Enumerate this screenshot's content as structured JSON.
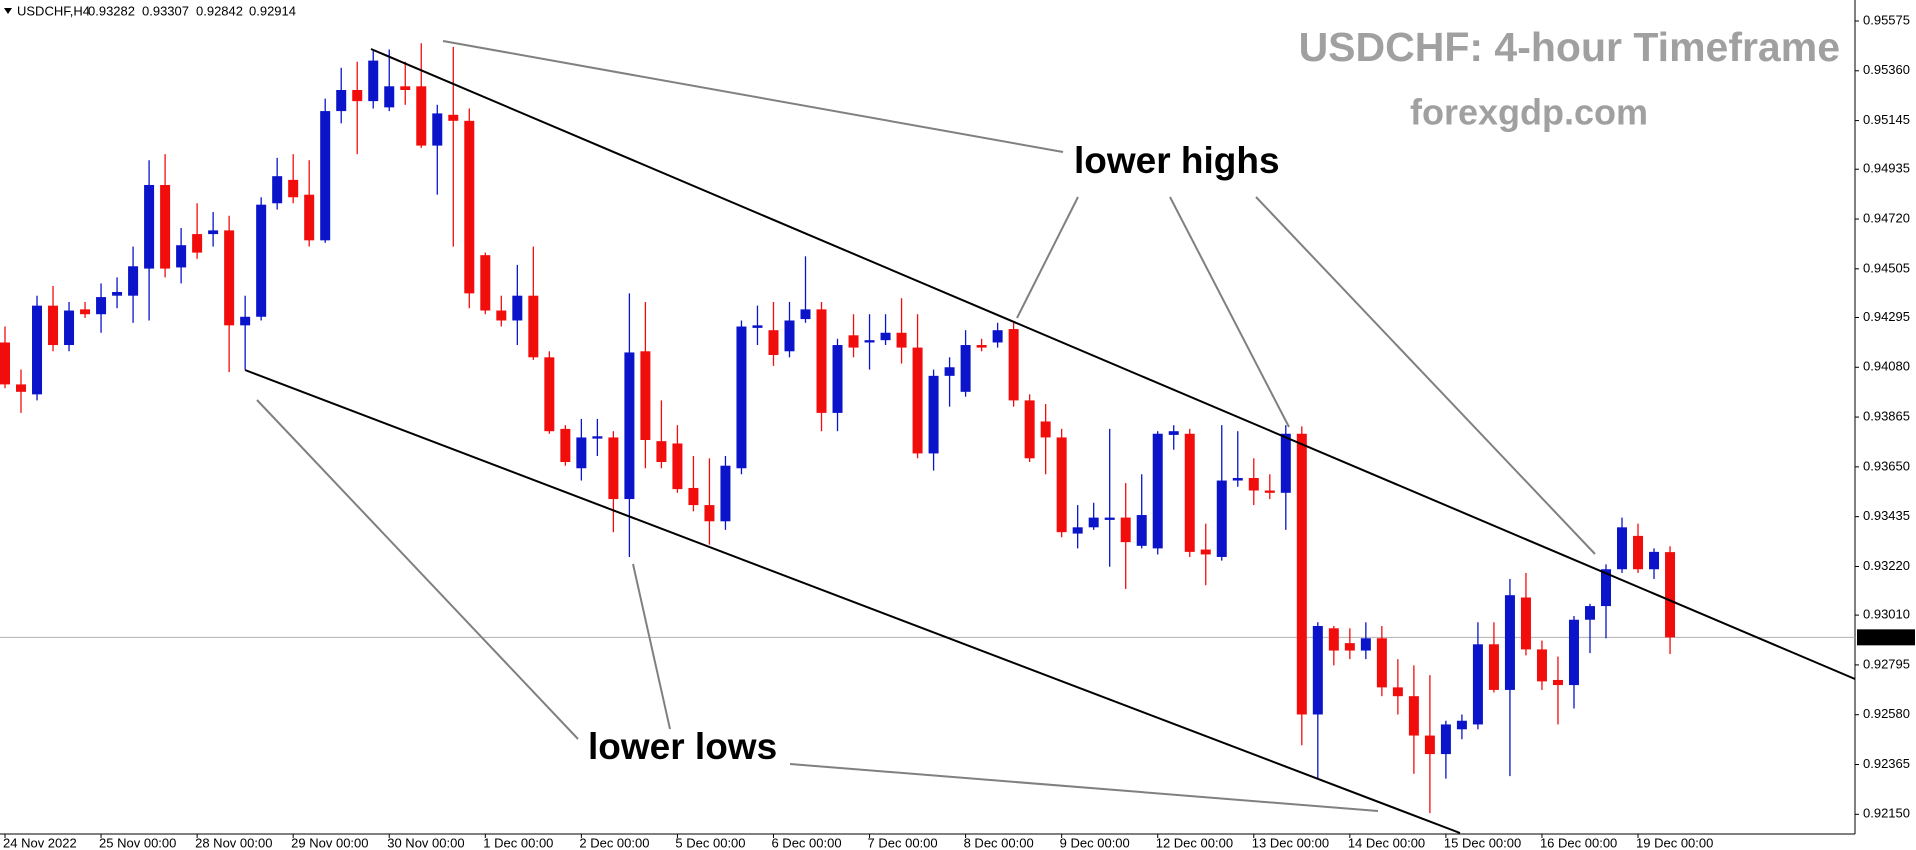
{
  "chart_data": {
    "type": "candlestick",
    "symbol": "USDCHF,H4",
    "title": "USDCHF: 4-hour Timeframe",
    "subtitle": "forexgdp.com",
    "annotations": [
      "lower highs",
      "lower lows"
    ],
    "up_color": "#0b14c9",
    "down_color": "#f20d0d",
    "ylim": [
      0.92065,
      0.95644
    ],
    "yticks": [
      0.95575,
      {
        "value": 0.9536,
        "label": "0.95360"
      },
      0.95145,
      0.94935,
      {
        "value": 0.9472,
        "label": "0.94720"
      },
      0.94505,
      0.94295,
      {
        "value": 0.9408,
        "label": "0.94080"
      },
      0.93865,
      {
        "value": 0.9365,
        "label": "0.93650"
      },
      0.93435,
      {
        "value": 0.9322,
        "label": "0.93220"
      },
      {
        "value": 0.9301,
        "label": "0.93010"
      },
      0.92795,
      {
        "value": 0.9258,
        "label": "0.92580"
      },
      0.92365,
      {
        "value": 0.9215,
        "label": "0.92150"
      }
    ],
    "categories": [
      "24 Nov 2022",
      null,
      null,
      null,
      null,
      null,
      "25 Nov 00:00",
      null,
      null,
      null,
      null,
      null,
      "28 Nov 00:00",
      null,
      null,
      null,
      null,
      null,
      "29 Nov 00:00",
      null,
      null,
      null,
      null,
      null,
      "30 Nov 00:00",
      null,
      null,
      null,
      null,
      null,
      "1 Dec 00:00",
      null,
      null,
      null,
      null,
      null,
      "2 Dec 00:00",
      null,
      null,
      null,
      null,
      null,
      "5 Dec 00:00",
      null,
      null,
      null,
      null,
      null,
      "6 Dec 00:00",
      null,
      null,
      null,
      null,
      null,
      "7 Dec 00:00",
      null,
      null,
      null,
      null,
      null,
      "8 Dec 00:00",
      null,
      null,
      null,
      null,
      null,
      "9 Dec 00:00",
      null,
      null,
      null,
      null,
      null,
      "12 Dec 00:00",
      null,
      null,
      null,
      null,
      null,
      "13 Dec 00:00",
      null,
      null,
      null,
      null,
      null,
      "14 Dec 00:00",
      null,
      null,
      null,
      null,
      null,
      "15 Dec 00:00",
      null,
      null,
      null,
      null,
      null,
      "16 Dec 00:00",
      null,
      null,
      null,
      null,
      null,
      "19 Dec 00:00",
      null,
      null
    ],
    "open": [
      0.94187,
      0.94006,
      0.93963,
      0.94346,
      0.94176,
      0.9433,
      0.94309,
      0.94389,
      0.94389,
      0.94506,
      0.94867,
      0.94511,
      0.94655,
      0.94655,
      0.94671,
      0.94261,
      0.94298,
      0.94788,
      0.94889,
      0.94825,
      0.94628,
      0.95186,
      0.95277,
      0.95229,
      0.95202,
      0.95293,
      0.95293,
      0.95037,
      0.9517,
      0.95144,
      0.94564,
      0.94325,
      0.94282,
      0.94389,
      0.94123,
      0.93814,
      0.93644,
      0.93772,
      0.93777,
      0.93511,
      0.94149,
      0.93761,
      0.93751,
      0.93559,
      0.93485,
      0.93415,
      0.93644,
      0.9425,
      0.9424,
      0.94149,
      0.94288,
      0.9433,
      0.93883,
      0.94218,
      0.94187,
      0.94197,
      0.94229,
      0.94165,
      0.93708,
      0.94043,
      0.93974,
      0.94176,
      0.94187,
      0.94245,
      0.93937,
      0.93846,
      0.93777,
      0.93362,
      0.93389,
      0.93421,
      0.93431,
      0.93309,
      0.93298,
      0.93788,
      0.93793,
      0.93293,
      0.93261,
      0.93591,
      0.93602,
      0.93548,
      0.93538,
      0.93793,
      0.92581,
      0.92953,
      0.92889,
      0.92857,
      0.9291,
      0.92698,
      0.9266,
      0.9249,
      0.9241,
      0.92517,
      0.92538,
      0.92884,
      0.92687,
      0.93086,
      0.92862,
      0.9273,
      0.92708,
      0.9299,
      0.93049,
      0.93208,
      0.93352,
      0.93208,
      0.93282
    ],
    "high": [
      0.94256,
      0.9407,
      0.94389,
      0.94431,
      0.94362,
      0.94362,
      0.94442,
      0.94468,
      0.94601,
      0.94974,
      0.95,
      0.94681,
      0.94788,
      0.9475,
      0.94734,
      0.94389,
      0.94814,
      0.94984,
      0.95,
      0.94974,
      0.9524,
      0.95373,
      0.95399,
      0.95452,
      0.95452,
      0.95399,
      0.95479,
      0.95213,
      0.95463,
      0.95197,
      0.94575,
      0.94389,
      0.94522,
      0.94601,
      0.94149,
      0.9383,
      0.93857,
      0.93857,
      0.93804,
      0.94399,
      0.94362,
      0.93937,
      0.9383,
      0.93697,
      0.93687,
      0.93697,
      0.94282,
      0.94346,
      0.94362,
      0.94362,
      0.94559,
      0.94362,
      0.94203,
      0.94309,
      0.94309,
      0.94309,
      0.94378,
      0.94309,
      0.9407,
      0.94123,
      0.9424,
      0.94203,
      0.94272,
      0.94272,
      0.93963,
      0.93921,
      0.93814,
      0.93485,
      0.93495,
      0.93814,
      0.9358,
      0.93618,
      0.93804,
      0.9383,
      0.93814,
      0.93405,
      0.9383,
      0.93804,
      0.93687,
      0.93618,
      0.9383,
      0.93825,
      0.92979,
      0.92963,
      0.92953,
      0.92979,
      0.92963,
      0.9282,
      0.92793,
      0.92751,
      0.92554,
      0.92581,
      0.92979,
      0.92979,
      0.93166,
      0.93192,
      0.929,
      0.92831,
      0.93006,
      0.93059,
      0.93229,
      0.93431,
      0.93405,
      0.93298,
      0.93307
    ],
    "low": [
      0.9399,
      0.93883,
      0.93937,
      0.94149,
      0.94149,
      0.94293,
      0.94229,
      0.94335,
      0.94272,
      0.94282,
      0.94468,
      0.94442,
      0.94548,
      0.94601,
      0.94059,
      0.9407,
      0.94282,
      0.94761,
      0.94788,
      0.94601,
      0.94617,
      0.95133,
      0.95,
      0.95197,
      0.95186,
      0.95213,
      0.95027,
      0.94825,
      0.94601,
      0.94335,
      0.94309,
      0.94256,
      0.94176,
      0.94112,
      0.93793,
      0.93655,
      0.93591,
      0.93697,
      0.93368,
      0.93261,
      0.93644,
      0.93644,
      0.93538,
      0.93458,
      0.93314,
      0.93378,
      0.93618,
      0.94176,
      0.94086,
      0.94123,
      0.94272,
      0.93804,
      0.93804,
      0.94123,
      0.9407,
      0.94176,
      0.94096,
      0.93687,
      0.93634,
      0.9391,
      0.93953,
      0.94149,
      0.94165,
      0.9391,
      0.93671,
      0.93618,
      0.93346,
      0.93298,
      0.93378,
      0.93219,
      0.93123,
      0.93298,
      0.93272,
      0.93724,
      0.93261,
      0.93139,
      0.93245,
      0.93564,
      0.93485,
      0.93511,
      0.93378,
      0.92448,
      0.92304,
      0.92793,
      0.9282,
      0.9282,
      0.9266,
      0.92581,
      0.92325,
      0.92155,
      0.92304,
      0.92474,
      0.92517,
      0.92676,
      0.92315,
      0.92836,
      0.92687,
      0.92538,
      0.92607,
      0.92846,
      0.9291,
      0.93192,
      0.93192,
      0.93166,
      0.92842
    ],
    "close": [
      0.94006,
      0.93974,
      0.94346,
      0.94176,
      0.94325,
      0.94309,
      0.94383,
      0.94405,
      0.94516,
      0.94867,
      0.94506,
      0.94607,
      0.94575,
      0.94671,
      0.94261,
      0.94298,
      0.94782,
      0.94905,
      0.94814,
      0.94628,
      0.95186,
      0.95277,
      0.95229,
      0.95404,
      0.95293,
      0.95277,
      0.95037,
      0.95176,
      0.95144,
      0.94399,
      0.94325,
      0.94282,
      0.94389,
      0.94123,
      0.93804,
      0.93671,
      0.93777,
      0.93782,
      0.93511,
      0.94144,
      0.93766,
      0.93671,
      0.93554,
      0.93485,
      0.93415,
      0.93655,
      0.94256,
      0.94261,
      0.94133,
      0.94282,
      0.9433,
      0.93883,
      0.94176,
      0.94165,
      0.94197,
      0.94229,
      0.94165,
      0.93708,
      0.94043,
      0.9408,
      0.94176,
      0.94165,
      0.9424,
      0.93937,
      0.93687,
      0.93777,
      0.93368,
      0.93389,
      0.93431,
      0.93431,
      0.93325,
      0.93442,
      0.93793,
      0.93804,
      0.93283,
      0.93272,
      0.93591,
      0.93602,
      0.93548,
      0.93538,
      0.93793,
      0.92581,
      0.92963,
      0.92857,
      0.92857,
      0.9291,
      0.92698,
      0.9266,
      0.9249,
      0.9241,
      0.92538,
      0.92554,
      0.92884,
      0.92687,
      0.93096,
      0.92862,
      0.92724,
      0.92708,
      0.9299,
      0.93049,
      0.93208,
      0.93389,
      0.93208,
      0.93283,
      0.92914
    ]
  }
}
